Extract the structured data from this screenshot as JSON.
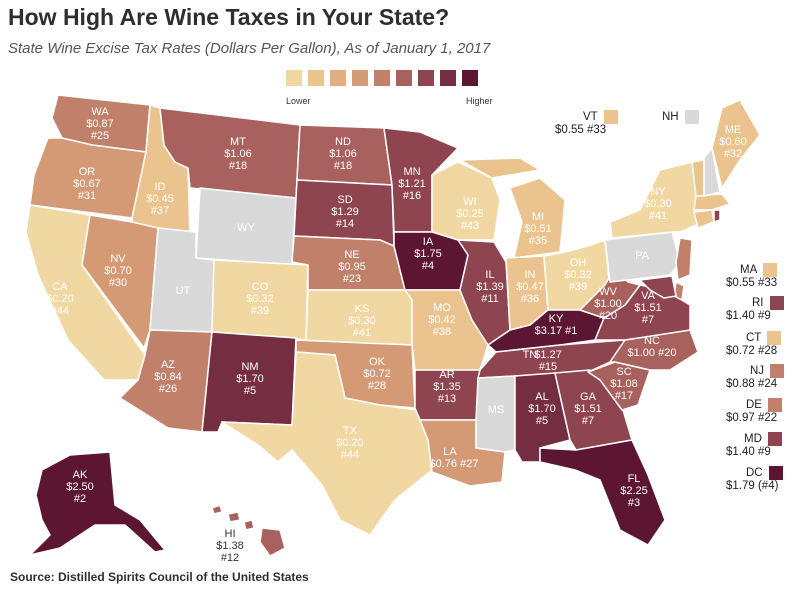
{
  "title": "How High Are Wine Taxes in Your State?",
  "subtitle": "State Wine Excise Tax Rates (Dollars Per Gallon), As of January 1, 2017",
  "legend": {
    "low_label": "Lower",
    "high_label": "Higher",
    "colors": [
      "#f1d7a2",
      "#ebc38e",
      "#e2b07f",
      "#d49a76",
      "#c0806a",
      "#a8615d",
      "#8e4550",
      "#752d41",
      "#5c1631"
    ]
  },
  "no_tax_color": "#d9d9d9",
  "states": {
    "WA": {
      "abbr": "WA",
      "rate": "$0.87",
      "rank": "#25"
    },
    "OR": {
      "abbr": "OR",
      "rate": "$0.67",
      "rank": "#31"
    },
    "CA": {
      "abbr": "CA",
      "rate": "$0.20",
      "rank": "#44"
    },
    "ID": {
      "abbr": "ID",
      "rate": "$0.45",
      "rank": "#37"
    },
    "NV": {
      "abbr": "NV",
      "rate": "$0.70",
      "rank": "#30"
    },
    "MT": {
      "abbr": "MT",
      "rate": "$1.06",
      "rank": "#18"
    },
    "WY": {
      "abbr": "WY"
    },
    "UT": {
      "abbr": "UT"
    },
    "AZ": {
      "abbr": "AZ",
      "rate": "$0.84",
      "rank": "#26"
    },
    "CO": {
      "abbr": "CO",
      "rate": "$0.32",
      "rank": "#39"
    },
    "NM": {
      "abbr": "NM",
      "rate": "$1.70",
      "rank": "#5"
    },
    "ND": {
      "abbr": "ND",
      "rate": "$1.06",
      "rank": "#18"
    },
    "SD": {
      "abbr": "SD",
      "rate": "$1.29",
      "rank": "#14"
    },
    "NE": {
      "abbr": "NE",
      "rate": "$0.95",
      "rank": "#23"
    },
    "KS": {
      "abbr": "KS",
      "rate": "$0.30",
      "rank": "#41"
    },
    "OK": {
      "abbr": "OK",
      "rate": "$0.72",
      "rank": "#28"
    },
    "TX": {
      "abbr": "TX",
      "rate": "$0.20",
      "rank": "#44"
    },
    "MN": {
      "abbr": "MN",
      "rate": "$1.21",
      "rank": "#16"
    },
    "IA": {
      "abbr": "IA",
      "rate": "$1.75",
      "rank": "#4"
    },
    "MO": {
      "abbr": "MO",
      "rate": "$0.42",
      "rank": "#38"
    },
    "AR": {
      "abbr": "AR",
      "rate": "$1.35",
      "rank": "#13"
    },
    "LA": {
      "abbr": "LA",
      "rate": "$0.76",
      "rank": "#27"
    },
    "WI": {
      "abbr": "WI",
      "rate": "$0.25",
      "rank": "#43"
    },
    "IL": {
      "abbr": "IL",
      "rate": "$1.39",
      "rank": "#11"
    },
    "MI": {
      "abbr": "MI",
      "rate": "$0.51",
      "rank": "#35"
    },
    "IN": {
      "abbr": "IN",
      "rate": "$0.47",
      "rank": "#36"
    },
    "OH": {
      "abbr": "OH",
      "rate": "$0.32",
      "rank": "#39"
    },
    "KY": {
      "abbr": "KY",
      "rate": "$3.17",
      "rank": "#1"
    },
    "TN": {
      "abbr": "TN",
      "rate": "$1.27",
      "rank": "#15"
    },
    "MS": {
      "abbr": "MS"
    },
    "AL": {
      "abbr": "AL",
      "rate": "$1.70",
      "rank": "#5"
    },
    "GA": {
      "abbr": "GA",
      "rate": "$1.51",
      "rank": "#7"
    },
    "FL": {
      "abbr": "FL",
      "rate": "$2.25",
      "rank": "#3"
    },
    "SC": {
      "abbr": "SC",
      "rate": "$1.08",
      "rank": "#17"
    },
    "NC": {
      "abbr": "NC",
      "rate": "$1.00",
      "rank": "#20"
    },
    "VA": {
      "abbr": "VA",
      "rate": "$1.51",
      "rank": "#7"
    },
    "WV": {
      "abbr": "WV",
      "rate": "$1.00",
      "rank": "#20"
    },
    "PA": {
      "abbr": "PA"
    },
    "NY": {
      "abbr": "NY",
      "rate": "$0.30",
      "rank": "#41"
    },
    "ME": {
      "abbr": "ME",
      "rate": "$0.60",
      "rank": "#32"
    },
    "AK": {
      "abbr": "AK",
      "rate": "$2.50",
      "rank": "#2"
    },
    "HI": {
      "abbr": "HI",
      "rate": "$1.38",
      "rank": "#12"
    }
  },
  "small_states": {
    "VT": {
      "abbr": "VT",
      "text": "$0.55 #33"
    },
    "NH": {
      "abbr": "NH"
    },
    "MA": {
      "abbr": "MA",
      "text": "$0.55 #33"
    },
    "RI": {
      "abbr": "RI",
      "text": "$1.40 #9"
    },
    "CT": {
      "abbr": "CT",
      "text": "$0.72 #28"
    },
    "NJ": {
      "abbr": "NJ",
      "text": "$0.88 #24"
    },
    "DE": {
      "abbr": "DE",
      "text": "$0.97 #22"
    },
    "MD": {
      "abbr": "MD",
      "text": "$1.40 #9"
    },
    "DC": {
      "abbr": "DC",
      "text": "$1.79 (#4)"
    }
  },
  "source": "Source: Distilled Spirits Council of the United States"
}
